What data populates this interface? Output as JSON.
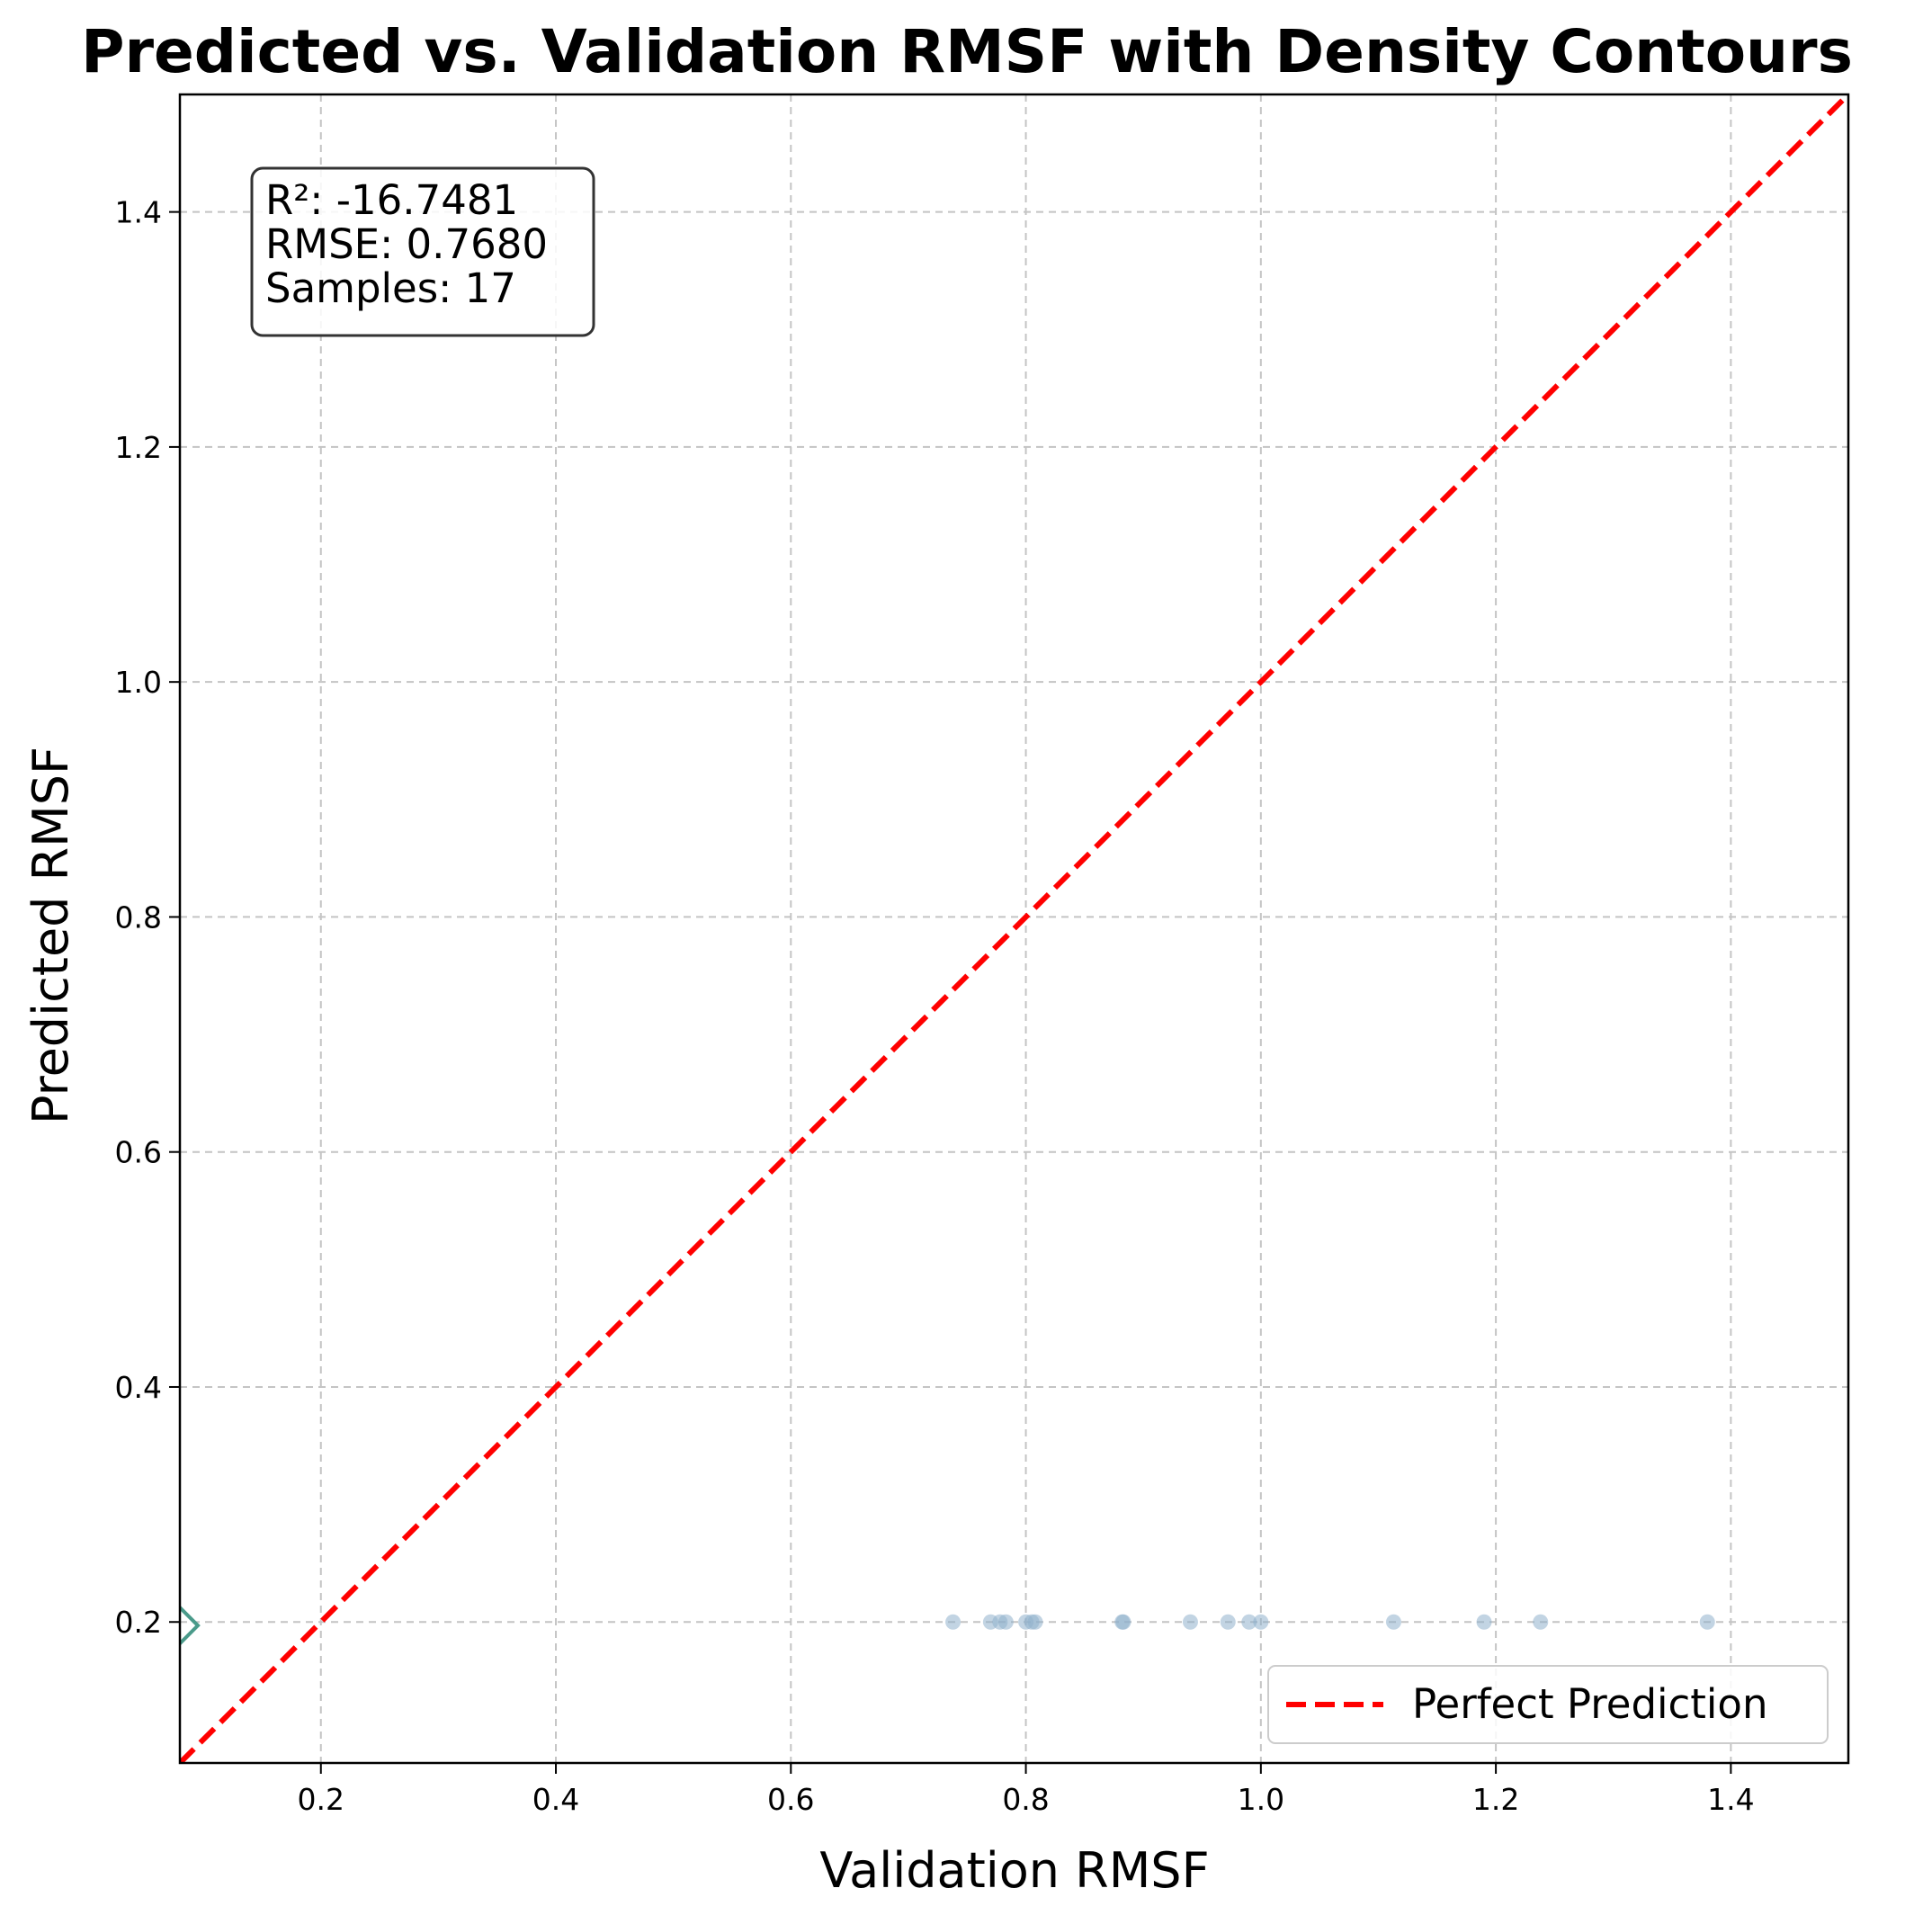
{
  "chart_data": {
    "type": "scatter",
    "title": "Predicted vs. Validation RMSF with Density Contours",
    "xlabel": "Validation RMSF",
    "ylabel": "Predicted RMSF",
    "xlim": [
      0.08,
      1.5
    ],
    "ylim": [
      0.08,
      1.5
    ],
    "xticks": [
      0.2,
      0.4,
      0.6,
      0.8,
      1.0,
      1.2,
      1.4
    ],
    "yticks": [
      0.2,
      0.4,
      0.6,
      0.8,
      1.0,
      1.2,
      1.4
    ],
    "xtick_labels": [
      "0.2",
      "0.4",
      "0.6",
      "0.8",
      "1.0",
      "1.2",
      "1.4"
    ],
    "ytick_labels": [
      "0.2",
      "0.4",
      "0.6",
      "0.8",
      "1.0",
      "1.2",
      "1.4"
    ],
    "grid": true,
    "points": {
      "x": [
        0.738,
        0.77,
        0.778,
        0.783,
        0.8,
        0.805,
        0.808,
        0.882,
        0.883,
        0.94,
        0.972,
        0.99,
        1.0,
        1.113,
        1.19,
        1.238,
        1.38
      ],
      "y": [
        0.2,
        0.2,
        0.2,
        0.2,
        0.2,
        0.2,
        0.2,
        0.2,
        0.2,
        0.2,
        0.2,
        0.2,
        0.2,
        0.2,
        0.2,
        0.2,
        0.2
      ],
      "color": "#8fb0cc"
    },
    "reference_line": {
      "name": "Perfect Prediction",
      "from": [
        0.08,
        0.08
      ],
      "to": [
        1.5,
        1.5
      ],
      "color": "#ff0000",
      "style": "dashed"
    },
    "contour_edge": {
      "x": 0.08,
      "y": 0.197,
      "color": "#4a9a8a"
    },
    "stats_box": {
      "lines": [
        "R²: -16.7481",
        "RMSE: 0.7680",
        "Samples: 17"
      ],
      "position": "top-left"
    },
    "legend": {
      "entries": [
        "Perfect Prediction"
      ],
      "position": "lower-right"
    }
  }
}
